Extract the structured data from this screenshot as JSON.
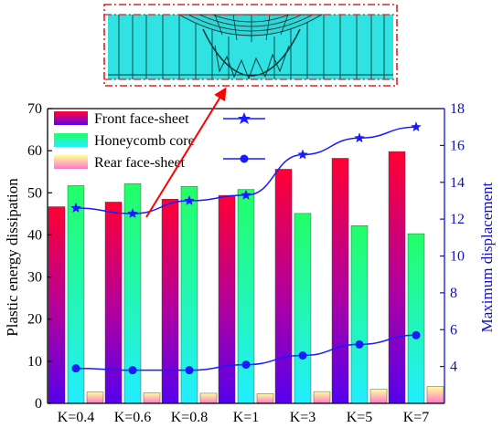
{
  "chart_data": {
    "type": "bar",
    "categories": [
      "K=0.4",
      "K=0.6",
      "K=0.8",
      "K=1",
      "K=3",
      "K=5",
      "K=7"
    ],
    "series": [
      {
        "name": "Front face-sheet",
        "axis": "left",
        "values": [
          46.7,
          47.8,
          48.5,
          49.4,
          55.6,
          58.2,
          59.8
        ]
      },
      {
        "name": "Honeycomb core",
        "axis": "left",
        "values": [
          51.7,
          52.2,
          51.5,
          50.8,
          45.1,
          42.2,
          40.3
        ]
      },
      {
        "name": "Rear face-sheet",
        "axis": "left",
        "values": [
          2.7,
          2.5,
          2.4,
          2.3,
          2.8,
          3.3,
          4.0
        ]
      }
    ],
    "line_series": [
      {
        "name": "Front face-sheet",
        "marker": "star",
        "axis": "right",
        "values": [
          12.6,
          12.3,
          13.0,
          13.3,
          15.5,
          16.4,
          17.0
        ]
      },
      {
        "name": "Rear face-sheet",
        "marker": "hexagon",
        "axis": "right",
        "values": [
          3.9,
          3.8,
          3.8,
          4.1,
          4.6,
          5.2,
          5.7
        ]
      }
    ],
    "legend": [
      "Front face-sheet",
      "Honeycomb core",
      "Rear face-sheet"
    ],
    "ylabel": "Plastic energy dissipation",
    "y2label": "Maximum displacement",
    "ylim": [
      0,
      70
    ],
    "y2lim": [
      2,
      18
    ],
    "yticks": [
      "0",
      "10",
      "20",
      "30",
      "40",
      "50",
      "60",
      "70"
    ],
    "y2ticks": [
      "4",
      "6",
      "8",
      "10",
      "12",
      "14",
      "16",
      "18"
    ],
    "grid": false,
    "legend_position": "top-left",
    "colors": {
      "front_top": "#ff0033",
      "front_bottom": "#5500ee",
      "core_top": "#22ff66",
      "core_bottom": "#22eeff",
      "rear_top": "#ffff99",
      "rear_bottom": "#ff77cc",
      "line": "#1a1aff",
      "axis_right": "#1010e0",
      "arrow": "#ff0000"
    }
  },
  "inset": {
    "description_icon": "fem-deformation-image",
    "frame_color": "#e02020",
    "fill_color": "#2fe0e0"
  }
}
